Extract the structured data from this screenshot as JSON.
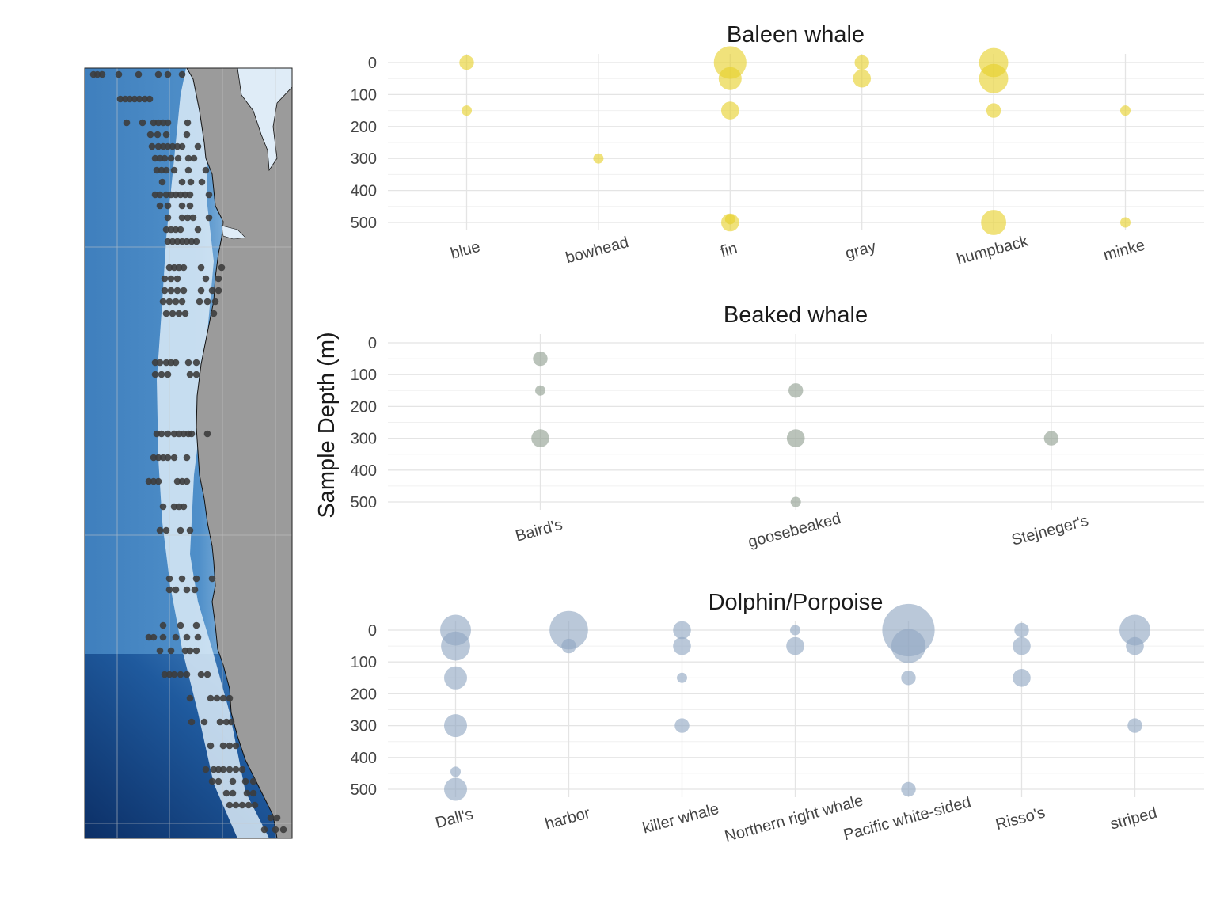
{
  "figure": {
    "ylabel": "Sample Depth (m)",
    "ytick_labels": [
      "0",
      "100",
      "200",
      "300",
      "400",
      "500"
    ]
  },
  "colors": {
    "baleen": "#e6d12a",
    "beaked": "#8f9e8f",
    "dolphin": "#8fa6c2",
    "map_station": "#3d3d3d",
    "land": "#9b9b9b",
    "deep_ocean": "#0c2f66",
    "shelf": "#d8e8f5"
  },
  "map": {
    "stations": "sampling-station-dots",
    "land": "coastline-land"
  },
  "chart_data": [
    {
      "type": "scatter",
      "title": "Baleen whale",
      "categories": [
        "blue",
        "bowhead",
        "fin",
        "gray",
        "humpback",
        "minke"
      ],
      "y_axis": {
        "label": "Sample Depth (m)",
        "reversed": true,
        "ylim": [
          0,
          500
        ],
        "ticks": [
          0,
          100,
          200,
          300,
          400,
          500
        ]
      },
      "grid": true,
      "points": [
        {
          "x": "blue",
          "depth": 0,
          "size": 2
        },
        {
          "x": "blue",
          "depth": 150,
          "size": 1
        },
        {
          "x": "bowhead",
          "depth": 300,
          "size": 1
        },
        {
          "x": "fin",
          "depth": 0,
          "size": 10
        },
        {
          "x": "fin",
          "depth": 50,
          "size": 5
        },
        {
          "x": "fin",
          "depth": 150,
          "size": 3
        },
        {
          "x": "fin",
          "depth": 500,
          "size": 3
        },
        {
          "x": "fin",
          "depth": 490,
          "size": 1
        },
        {
          "x": "gray",
          "depth": 0,
          "size": 2
        },
        {
          "x": "gray",
          "depth": 50,
          "size": 3
        },
        {
          "x": "humpback",
          "depth": 0,
          "size": 8
        },
        {
          "x": "humpback",
          "depth": 50,
          "size": 8
        },
        {
          "x": "humpback",
          "depth": 150,
          "size": 2
        },
        {
          "x": "humpback",
          "depth": 500,
          "size": 6
        },
        {
          "x": "minke",
          "depth": 150,
          "size": 1
        },
        {
          "x": "minke",
          "depth": 500,
          "size": 1
        }
      ]
    },
    {
      "type": "scatter",
      "title": "Beaked whale",
      "categories": [
        "Baird's",
        "goosebeaked",
        "Stejneger's"
      ],
      "y_axis": {
        "label": "Sample Depth (m)",
        "reversed": true,
        "ylim": [
          0,
          500
        ],
        "ticks": [
          0,
          100,
          200,
          300,
          400,
          500
        ]
      },
      "grid": true,
      "points": [
        {
          "x": "Baird's",
          "depth": 50,
          "size": 2
        },
        {
          "x": "Baird's",
          "depth": 150,
          "size": 1
        },
        {
          "x": "Baird's",
          "depth": 300,
          "size": 3
        },
        {
          "x": "goosebeaked",
          "depth": 150,
          "size": 2
        },
        {
          "x": "goosebeaked",
          "depth": 300,
          "size": 3
        },
        {
          "x": "goosebeaked",
          "depth": 500,
          "size": 1
        },
        {
          "x": "Stejneger's",
          "depth": 300,
          "size": 2
        }
      ]
    },
    {
      "type": "scatter",
      "title": "Dolphin/Porpoise",
      "categories": [
        "Dall's",
        "harbor",
        "killer whale",
        "Northern right whale",
        "Pacific white-sided",
        "Risso's",
        "striped"
      ],
      "y_axis": {
        "label": "Sample Depth (m)",
        "reversed": true,
        "ylim": [
          0,
          500
        ],
        "ticks": [
          0,
          100,
          200,
          300,
          400,
          500
        ]
      },
      "grid": true,
      "points": [
        {
          "x": "Dall's",
          "depth": 0,
          "size": 9
        },
        {
          "x": "Dall's",
          "depth": 50,
          "size": 8
        },
        {
          "x": "Dall's",
          "depth": 150,
          "size": 5
        },
        {
          "x": "Dall's",
          "depth": 300,
          "size": 5
        },
        {
          "x": "Dall's",
          "depth": 445,
          "size": 1
        },
        {
          "x": "Dall's",
          "depth": 500,
          "size": 5
        },
        {
          "x": "harbor",
          "depth": 0,
          "size": 14
        },
        {
          "x": "harbor",
          "depth": 50,
          "size": 2
        },
        {
          "x": "killer whale",
          "depth": 0,
          "size": 3
        },
        {
          "x": "killer whale",
          "depth": 50,
          "size": 3
        },
        {
          "x": "killer whale",
          "depth": 150,
          "size": 1
        },
        {
          "x": "killer whale",
          "depth": 300,
          "size": 2
        },
        {
          "x": "Northern right whale",
          "depth": 0,
          "size": 1
        },
        {
          "x": "Northern right whale",
          "depth": 50,
          "size": 3
        },
        {
          "x": "Pacific white-sided",
          "depth": 0,
          "size": 26
        },
        {
          "x": "Pacific white-sided",
          "depth": 50,
          "size": 11
        },
        {
          "x": "Pacific white-sided",
          "depth": 150,
          "size": 2
        },
        {
          "x": "Pacific white-sided",
          "depth": 500,
          "size": 2
        },
        {
          "x": "Risso's",
          "depth": 0,
          "size": 2
        },
        {
          "x": "Risso's",
          "depth": 50,
          "size": 3
        },
        {
          "x": "Risso's",
          "depth": 150,
          "size": 3
        },
        {
          "x": "striped",
          "depth": 0,
          "size": 9
        },
        {
          "x": "striped",
          "depth": 50,
          "size": 3
        },
        {
          "x": "striped",
          "depth": 300,
          "size": 2
        }
      ]
    }
  ]
}
